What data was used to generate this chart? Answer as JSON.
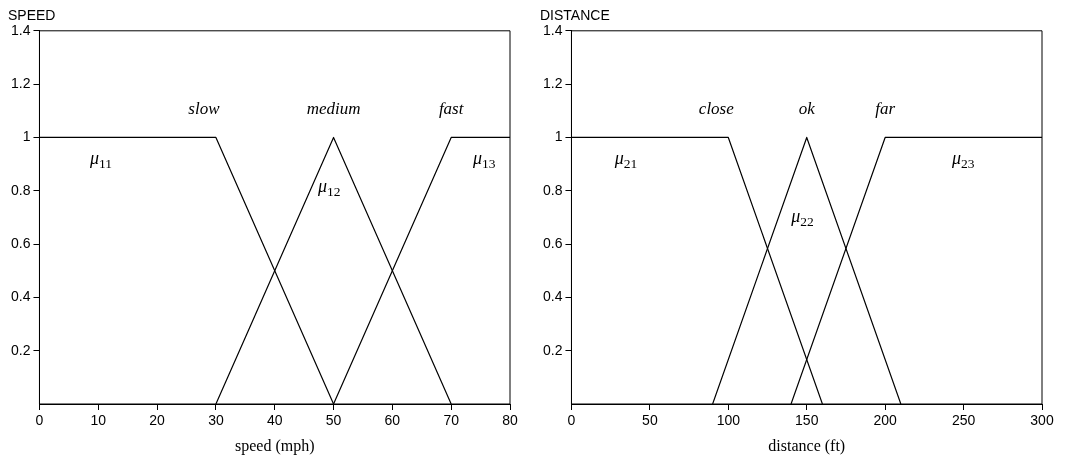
{
  "chart_data": [
    {
      "type": "line",
      "title": "SPEED",
      "xlabel": "speed (mph)",
      "xlim": [
        0,
        80
      ],
      "xticks": [
        0,
        10,
        20,
        30,
        40,
        50,
        60,
        70,
        80
      ],
      "ylim": [
        0,
        1.4
      ],
      "yticks": [
        0.2,
        0.4,
        0.6,
        0.8,
        1,
        1.2,
        1.4
      ],
      "grid": false,
      "legend": false,
      "marker": "none",
      "line_style": "solid",
      "series": [
        {
          "name": "slow",
          "color": "#000000",
          "x": [
            0,
            30,
            50
          ],
          "values": [
            1,
            1,
            0
          ]
        },
        {
          "name": "medium",
          "color": "#000000",
          "x": [
            30,
            50,
            70
          ],
          "values": [
            0,
            1,
            0
          ]
        },
        {
          "name": "fast",
          "color": "#000000",
          "x": [
            50,
            70,
            80
          ],
          "values": [
            0,
            1,
            1
          ]
        }
      ],
      "annotations": [
        "μ$_{11}$",
        "μ$_{12}$",
        "μ$_{13}$"
      ]
    },
    {
      "type": "line",
      "title": "DISTANCE",
      "xlabel": "distance (ft)",
      "xlim": [
        0,
        300
      ],
      "xticks": [
        0,
        50,
        100,
        150,
        200,
        250,
        300
      ],
      "ylim": [
        0,
        1.4
      ],
      "yticks": [
        0.2,
        0.4,
        0.6,
        0.8,
        1,
        1.2,
        1.4
      ],
      "grid": false,
      "legend": false,
      "marker": "none",
      "line_style": "solid",
      "series": [
        {
          "name": "close",
          "color": "#000000",
          "x": [
            0,
            100,
            160
          ],
          "values": [
            1,
            1,
            0
          ]
        },
        {
          "name": "ok",
          "color": "#000000",
          "x": [
            90,
            150,
            210
          ],
          "values": [
            0,
            1,
            0
          ]
        },
        {
          "name": "far",
          "color": "#000000",
          "x": [
            140,
            200,
            300
          ],
          "values": [
            0,
            1,
            1
          ]
        }
      ],
      "annotations": [
        "μ$_{21}$",
        "μ$_{22}$",
        "μ$_{23}$"
      ]
    }
  ]
}
